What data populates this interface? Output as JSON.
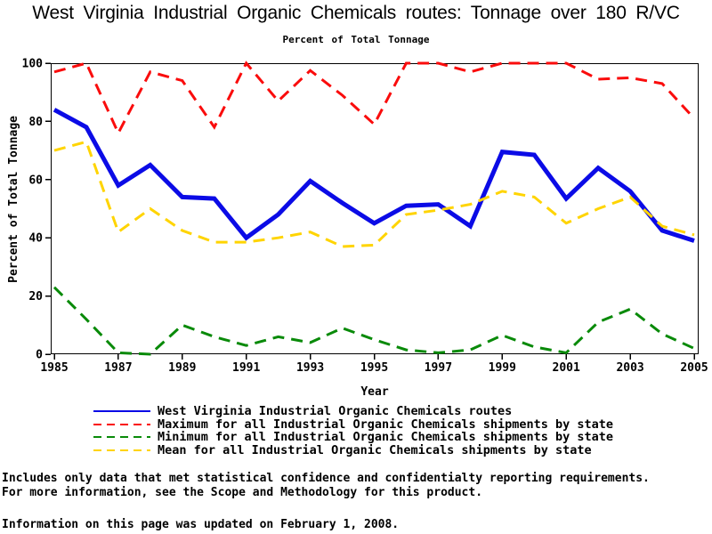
{
  "page": {
    "footnotes": [
      "Includes only data that met statistical confidence and confidentialty reporting requirements.",
      "For more information, see the Scope and Methodology for this product."
    ],
    "updated_note": "Information on this page was updated on February 1, 2008."
  },
  "chart_data": {
    "type": "line",
    "title": "West Virginia Industrial Organic Chemicals routes: Tonnage over 180 R/VC",
    "subtitle": "Percent of Total Tonnage",
    "xlabel": "Year",
    "ylabel": "Percent of Total Tonnage",
    "x": [
      1985,
      1986,
      1987,
      1988,
      1989,
      1990,
      1991,
      1992,
      1993,
      1994,
      1995,
      1996,
      1997,
      1998,
      1999,
      2000,
      2001,
      2002,
      2003,
      2004,
      2005
    ],
    "x_ticks": [
      1985,
      1987,
      1989,
      1991,
      1993,
      1995,
      1997,
      1999,
      2001,
      2003,
      2005
    ],
    "y_ticks": [
      0,
      20,
      40,
      60,
      80,
      100
    ],
    "ylim": [
      0,
      100
    ],
    "grid": false,
    "legend_position": "bottom",
    "series": [
      {
        "name": "West Virginia Industrial Organic Chemicals routes",
        "color": "#0b0be6",
        "style": "solid",
        "width": 5,
        "values": [
          84,
          78,
          58,
          65,
          54,
          53.5,
          40,
          48,
          59.5,
          52,
          45,
          51,
          51.5,
          44,
          69.5,
          68.5,
          53.5,
          64,
          56,
          42.5,
          39
        ]
      },
      {
        "name": "Maximum for all Industrial Organic Chemicals shipments by state",
        "color": "#fa0c0c",
        "style": "dashed",
        "width": 3,
        "values": [
          97,
          100,
          76,
          97,
          94,
          78,
          100,
          87,
          97.5,
          89,
          79,
          100,
          100,
          97,
          100,
          100,
          100,
          94.5,
          95,
          93,
          81
        ]
      },
      {
        "name": "Minimum for all Industrial Organic Chemicals shipments by state",
        "color": "#098a09",
        "style": "dashed",
        "width": 3,
        "values": [
          23,
          12,
          0.5,
          0,
          10,
          6,
          3,
          6,
          4,
          9,
          5,
          1.5,
          0.5,
          1.5,
          6.5,
          2.5,
          0.5,
          11,
          15.5,
          7,
          2
        ]
      },
      {
        "name": "Mean for all Industrial Organic Chemicals shipments by state",
        "color": "#ffd400",
        "style": "dashed",
        "width": 3,
        "values": [
          70,
          73,
          42,
          50,
          42.5,
          38.5,
          38.5,
          40,
          42,
          37,
          37.5,
          48,
          49.5,
          51.5,
          56,
          54,
          45,
          50,
          54,
          44,
          41
        ]
      }
    ]
  }
}
